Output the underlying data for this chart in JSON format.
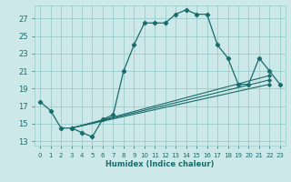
{
  "xlabel": "Humidex (Indice chaleur)",
  "xlim": [
    -0.5,
    23.5
  ],
  "ylim": [
    12.5,
    28.5
  ],
  "yticks": [
    13,
    15,
    17,
    19,
    21,
    23,
    25,
    27
  ],
  "xticks": [
    0,
    1,
    2,
    3,
    4,
    5,
    6,
    7,
    8,
    9,
    10,
    11,
    12,
    13,
    14,
    15,
    16,
    17,
    18,
    19,
    20,
    21,
    22,
    23
  ],
  "bg_color": "#cce8e8",
  "grid_color": "#99cccc",
  "line_color": "#1a6b6b",
  "main_curve": {
    "x": [
      0,
      1,
      2,
      3,
      4,
      5,
      6,
      7,
      8,
      9,
      10,
      11,
      12,
      13,
      14,
      15,
      16,
      17,
      18,
      19,
      20,
      21,
      22,
      23
    ],
    "y": [
      17.5,
      16.5,
      14.5,
      14.5,
      14.0,
      13.5,
      15.5,
      16.0,
      21.0,
      24.0,
      26.5,
      26.5,
      26.5,
      27.5,
      28.0,
      27.5,
      27.5,
      24.0,
      22.5,
      19.5,
      19.5,
      22.5,
      21.0,
      19.5
    ]
  },
  "diag_lines": [
    {
      "x": [
        3,
        22
      ],
      "y": [
        14.5,
        19.5
      ]
    },
    {
      "x": [
        3,
        22
      ],
      "y": [
        14.5,
        20.0
      ]
    },
    {
      "x": [
        3,
        22
      ],
      "y": [
        14.5,
        20.5
      ]
    }
  ]
}
